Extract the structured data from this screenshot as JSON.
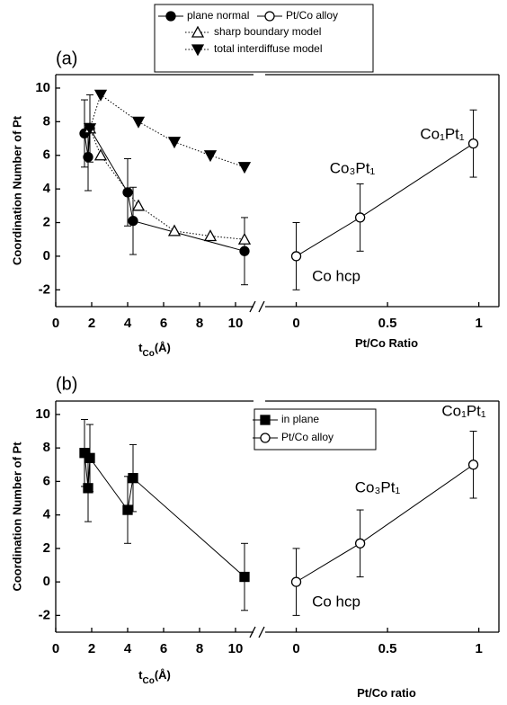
{
  "chart_data": [
    {
      "type": "line",
      "label": "(a)",
      "ylabel": "Coordination Number of Pt",
      "xlabel": [
        "t",
        "Co",
        "(Å)"
      ],
      "xlim": [
        0,
        11
      ],
      "xticks": [
        0,
        2,
        4,
        6,
        8,
        10
      ],
      "ylim": [
        -3,
        10.8
      ],
      "yticks": [
        -2,
        0,
        2,
        4,
        6,
        8,
        10
      ],
      "series": [
        {
          "name": "plane normal",
          "color": "#000000",
          "marker": "circle-filled",
          "linestyle": "solid",
          "x": [
            1.6,
            1.8,
            1.9,
            4.0,
            4.3,
            10.5
          ],
          "values": [
            7.3,
            5.9,
            7.6,
            3.8,
            2.1,
            0.3
          ],
          "errors": [
            2,
            2,
            2,
            2,
            2,
            2
          ]
        },
        {
          "name": "sharp boundary model",
          "color": "#000000",
          "marker": "triangle-open",
          "linestyle": "dotted",
          "x": [
            1.9,
            2.5,
            4.6,
            6.6,
            8.6,
            10.5
          ],
          "values": [
            7.6,
            6.0,
            3.0,
            1.5,
            1.2,
            1.0
          ]
        },
        {
          "name": "total interdiffuse model",
          "color": "#000000",
          "marker": "triangle-down-filled",
          "linestyle": "dotted",
          "x": [
            1.9,
            2.5,
            4.6,
            6.6,
            8.6,
            10.5
          ],
          "values": [
            7.6,
            9.6,
            8.0,
            6.8,
            6.0,
            5.3
          ]
        }
      ]
    },
    {
      "type": "line",
      "xlabel": [
        "Pt/Co Ratio"
      ],
      "xlim": [
        -0.17,
        1.11
      ],
      "xticks": [
        0,
        0.5,
        1
      ],
      "ylim": [
        -3,
        10.8
      ],
      "annotations": [
        "Co₁Pt₁",
        "Co₃Pt₁",
        "Co hcp"
      ],
      "series": [
        {
          "name": "Pt/Co alloy",
          "color": "#000000",
          "marker": "circle-open",
          "linestyle": "solid",
          "x": [
            0,
            0.35,
            0.97
          ],
          "values": [
            0,
            2.3,
            6.7
          ],
          "errors": [
            2,
            2,
            2
          ]
        }
      ]
    },
    {
      "type": "line",
      "label": "(b)",
      "ylabel": "Coordination Number of Pt",
      "xlabel": [
        "t",
        "Co",
        "(Å)"
      ],
      "xlim": [
        0,
        11
      ],
      "xticks": [
        0,
        2,
        4,
        6,
        8,
        10
      ],
      "ylim": [
        -3,
        10.8
      ],
      "yticks": [
        -2,
        0,
        2,
        4,
        6,
        8,
        10
      ],
      "series": [
        {
          "name": "in plane",
          "color": "#000000",
          "marker": "square-filled",
          "linestyle": "solid",
          "x": [
            1.6,
            1.8,
            1.9,
            4.0,
            4.3,
            10.5
          ],
          "values": [
            7.7,
            5.6,
            7.4,
            4.3,
            6.2,
            0.3
          ],
          "errors": [
            2,
            2,
            2,
            2,
            2,
            2
          ]
        }
      ]
    },
    {
      "type": "line",
      "xlabel": [
        "Pt/Co ratio"
      ],
      "xlim": [
        -0.17,
        1.11
      ],
      "xticks": [
        0,
        0.5,
        1
      ],
      "ylim": [
        -3,
        10.8
      ],
      "annotations": [
        "Co₁Pt₁",
        "Co₃Pt₁",
        "Co hcp"
      ],
      "series": [
        {
          "name": "Pt/Co alloy",
          "color": "#000000",
          "marker": "circle-open",
          "linestyle": "solid",
          "x": [
            0,
            0.35,
            0.97
          ],
          "values": [
            0,
            2.3,
            7.0
          ],
          "errors": [
            2,
            2,
            2
          ]
        }
      ]
    }
  ]
}
